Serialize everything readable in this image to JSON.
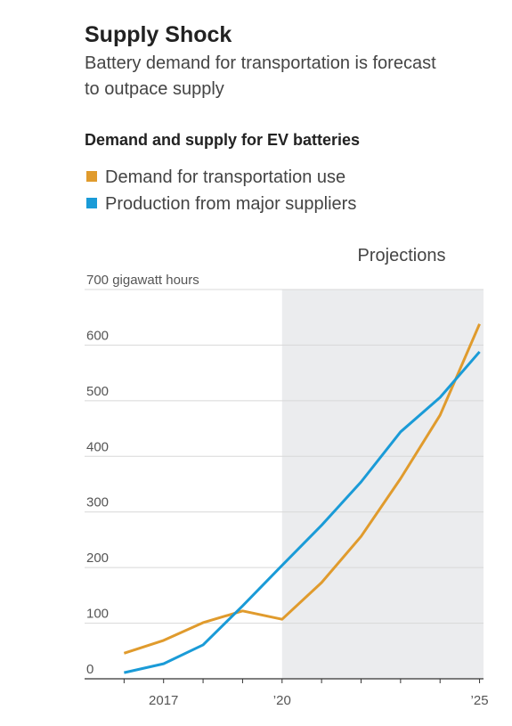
{
  "chart_data": {
    "type": "line",
    "title": "Supply Shock",
    "subtitle": [
      "Battery demand for transportation is forecast",
      "to outpace supply"
    ],
    "chart_title": "Demand and supply for EV batteries",
    "annotation": "Projections",
    "shade_from": 2020,
    "x": [
      2016,
      2017,
      2018,
      2019,
      2020,
      2021,
      2022,
      2023,
      2024,
      2025
    ],
    "series": [
      {
        "name": "Demand for transportation use",
        "color": "#e09b2d",
        "values": [
          46,
          69,
          101,
          122,
          107,
          173,
          256,
          360,
          474,
          638
        ]
      },
      {
        "name": "Production from major suppliers",
        "color": "#1a9bd7",
        "values": [
          11,
          27,
          61,
          131,
          204,
          276,
          354,
          444,
          506,
          588
        ]
      }
    ],
    "xlim": [
      2015,
      2025.1
    ],
    "xticks": [
      2017,
      {
        "value": 2020,
        "label": "’20"
      },
      {
        "value": 2025,
        "label": "’25"
      }
    ],
    "xminor_ticks": [
      2016,
      2017,
      2018,
      2019,
      2020,
      2021,
      2022,
      2023,
      2024,
      2025
    ],
    "ylim": [
      0,
      700
    ],
    "yticks": [
      0,
      100,
      200,
      300,
      400,
      500,
      600,
      {
        "value": 700,
        "label": "700 gigawatt hours"
      }
    ],
    "grid": true
  }
}
